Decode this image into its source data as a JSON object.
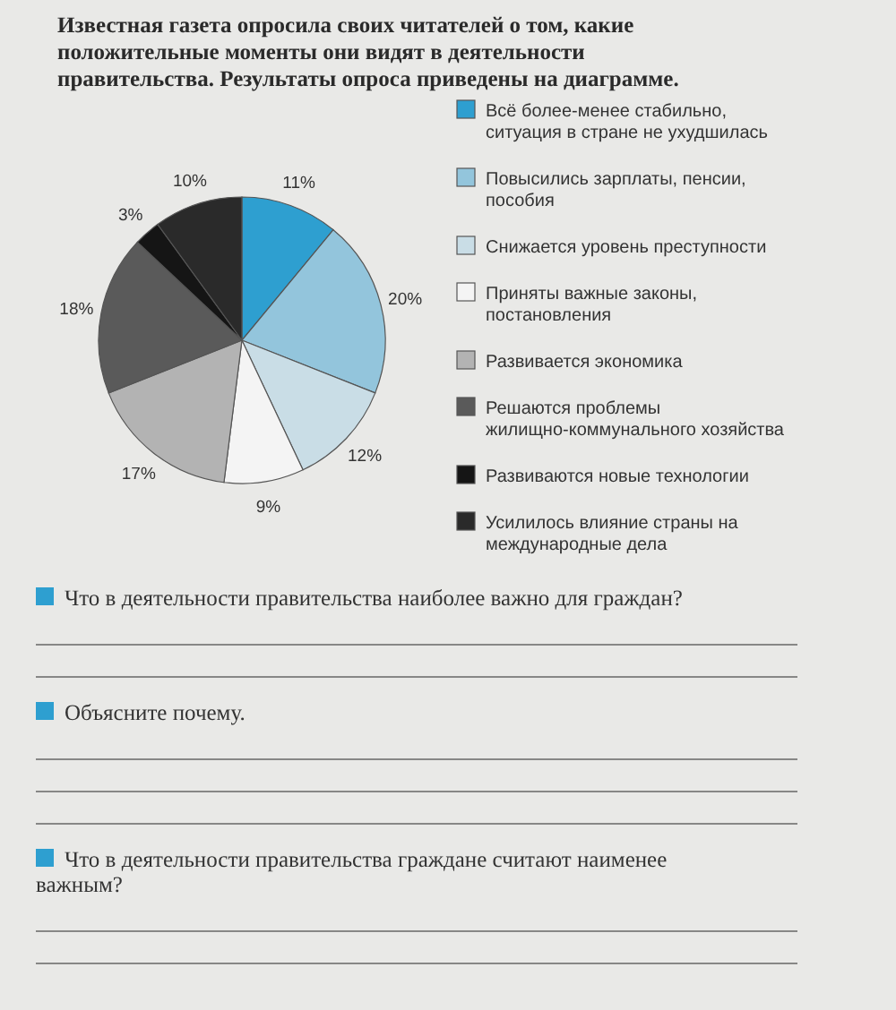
{
  "chart_data": {
    "type": "pie",
    "title": "Известная газета опросила своих читателей о том, какие положительные моменты они видят в деятельности правительства. Результаты опроса приведены на диаграмме.",
    "categories": [
      "Всё более-менее стабильно, ситуация в стране не ухудшилась",
      "Повысились зарплаты, пенсии, пособия",
      "Снижается уровень преступности",
      "Приняты важные законы, постановления",
      "Развивается экономика",
      "Решаются проблемы жилищно-коммунального хозяйства",
      "Развиваются новые технологии",
      "Усилилось влияние страны на международные дела"
    ],
    "values": [
      11,
      20,
      12,
      9,
      17,
      18,
      3,
      10
    ],
    "value_labels": [
      "11%",
      "20%",
      "12%",
      "9%",
      "17%",
      "18%",
      "3%",
      "10%"
    ],
    "colors": [
      "#2e9fd0",
      "#93c5dc",
      "#c9dde6",
      "#f4f4f4",
      "#b3b3b3",
      "#5a5a5a",
      "#151515",
      "#2a2a2a"
    ],
    "legend": "right",
    "annotations": [
      "Что в деятельности правительства наиболее важно для граждан?",
      "Объясните почему.",
      "Что в деятельности правительства граждане считают наименее важным?"
    ]
  }
}
